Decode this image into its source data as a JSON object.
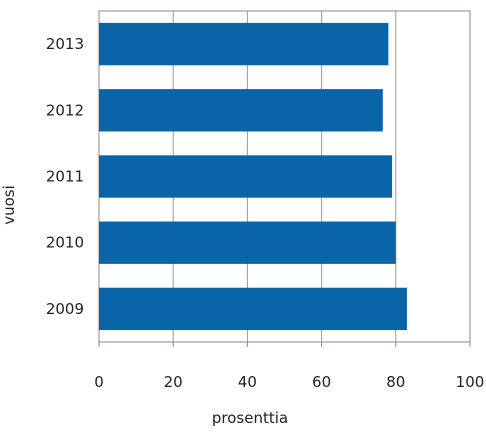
{
  "chart_data": {
    "type": "bar",
    "orientation": "horizontal",
    "categories": [
      "2013",
      "2012",
      "2011",
      "2010",
      "2009"
    ],
    "values": [
      78,
      76.5,
      79,
      80,
      83
    ],
    "xlabel": "prosenttia",
    "ylabel": "vuosi",
    "xlim": [
      0,
      100
    ],
    "xticks": [
      0,
      20,
      40,
      60,
      80,
      100
    ],
    "grid": "vertical",
    "legend": "none",
    "bar_color": "#0a64a8",
    "axis_color": "#9a8282",
    "grid_color": "#9a9a9a"
  }
}
